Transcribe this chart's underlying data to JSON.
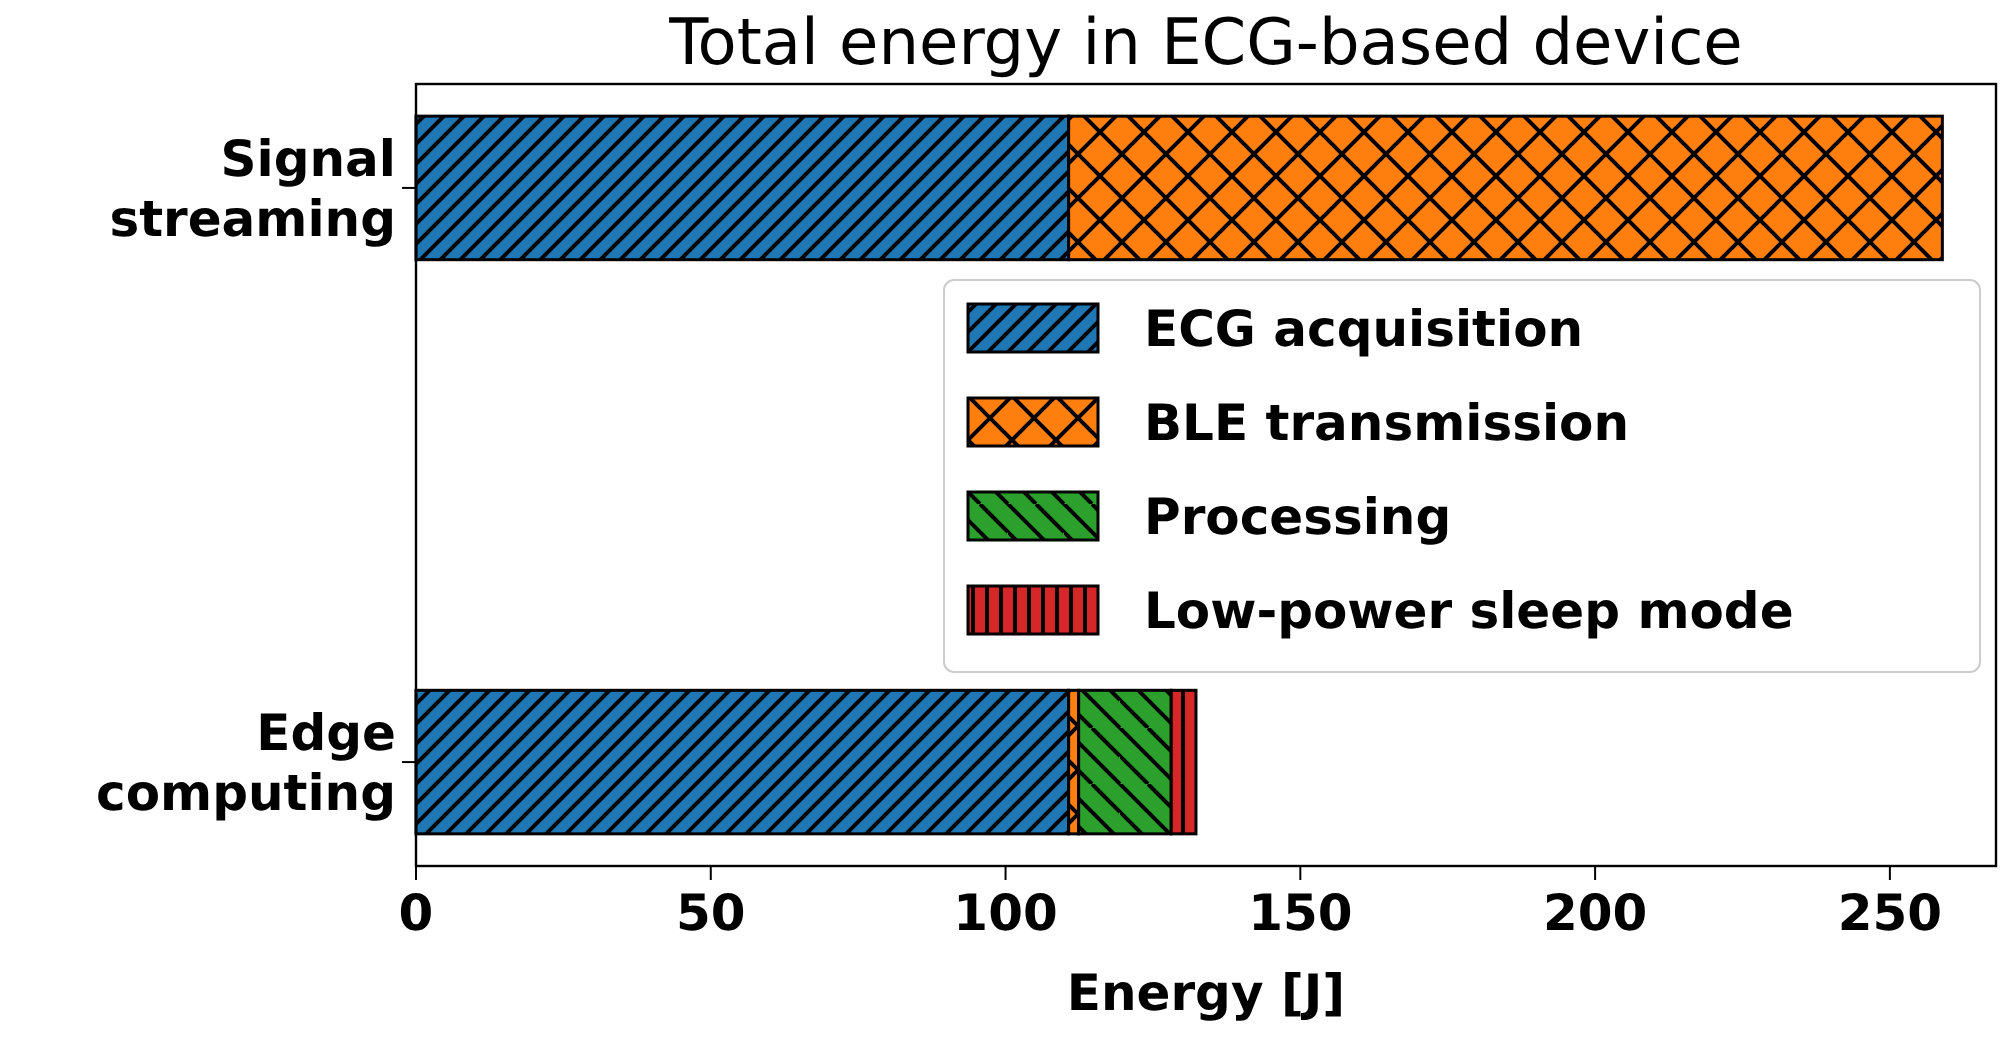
{
  "chart_data": {
    "type": "bar",
    "orientation": "horizontal",
    "stacked": true,
    "title": "Total energy in ECG-based device",
    "xlabel": "Energy [J]",
    "categories": [
      "Signal\nstreaming",
      "Edge\ncomputing"
    ],
    "series": [
      {
        "name": "ECG acquisition",
        "color": "#1f77b4",
        "values": [
          110.7,
          110.7
        ]
      },
      {
        "name": "BLE transmission",
        "color": "#ff7f0e",
        "values": [
          148.2,
          1.7
        ]
      },
      {
        "name": "Processing",
        "color": "#2ca02c",
        "values": [
          0,
          15.7
        ]
      },
      {
        "name": "Low-power sleep mode",
        "color": "#d62728",
        "values": [
          0,
          4.2
        ]
      }
    ],
    "xlim": [
      0,
      268
    ],
    "xticks": [
      0,
      50,
      100,
      150,
      200,
      250
    ],
    "grid": false,
    "legend": "right"
  }
}
